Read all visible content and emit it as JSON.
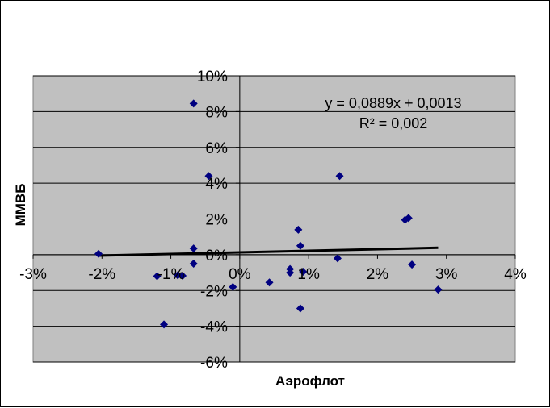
{
  "chart_data": {
    "type": "scatter",
    "xlabel": "Аэрофлот",
    "ylabel": "ММВБ",
    "xlim": [
      -0.03,
      0.04
    ],
    "ylim": [
      -0.06,
      0.1
    ],
    "x_ticks": [
      -0.03,
      -0.02,
      -0.01,
      0.0,
      0.01,
      0.02,
      0.03,
      0.04
    ],
    "x_tick_labels": [
      "-3%",
      "-2%",
      "-1%",
      "0%",
      "1%",
      "2%",
      "3%",
      "4%"
    ],
    "y_ticks": [
      -0.06,
      -0.04,
      -0.02,
      0.0,
      0.02,
      0.04,
      0.06,
      0.08,
      0.1
    ],
    "y_tick_labels": [
      "-6%",
      "-4%",
      "-2%",
      "0%",
      "2%",
      "4%",
      "6%",
      "8%",
      "10%"
    ],
    "grid": "horizontal",
    "plot_background": "#c0c0c0",
    "marker_color": "#000080",
    "line_color": "#000000",
    "series": [
      {
        "points": [
          [
            -0.0205,
            0.0005
          ],
          [
            -0.012,
            -0.012
          ],
          [
            -0.011,
            -0.039
          ],
          [
            -0.009,
            -0.0115
          ],
          [
            -0.0083,
            -0.0118
          ],
          [
            -0.0067,
            0.0845
          ],
          [
            -0.0067,
            0.0035
          ],
          [
            -0.0067,
            -0.005
          ],
          [
            -0.0045,
            0.044
          ],
          [
            -0.001,
            -0.018
          ],
          [
            0.0043,
            -0.0155
          ],
          [
            0.0073,
            -0.008
          ],
          [
            0.0073,
            -0.01
          ],
          [
            0.0085,
            0.014
          ],
          [
            0.0088,
            0.005
          ],
          [
            0.0088,
            -0.03
          ],
          [
            0.0092,
            -0.0095
          ],
          [
            0.0142,
            -0.002
          ],
          [
            0.0145,
            0.044
          ],
          [
            0.024,
            0.0195
          ],
          [
            0.0245,
            0.0205
          ],
          [
            0.025,
            -0.0055
          ],
          [
            0.0288,
            -0.0195
          ]
        ]
      }
    ],
    "trendline": {
      "slope": 0.0889,
      "intercept": 0.0013,
      "x_range": [
        -0.0205,
        0.0288
      ],
      "equation": "y = 0,0889x + 0,0013",
      "r_squared": "R² = 0,002"
    }
  }
}
